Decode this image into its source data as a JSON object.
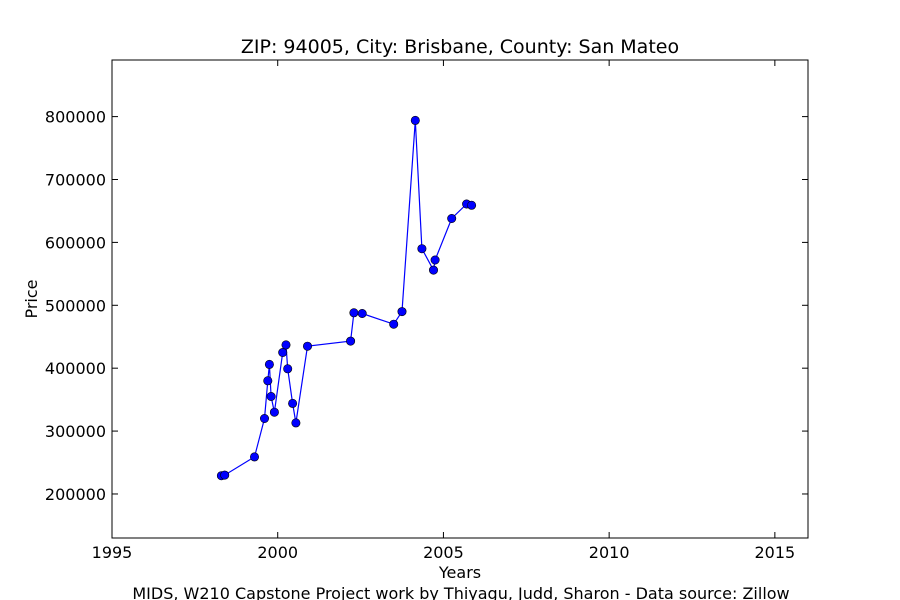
{
  "chart_data": {
    "type": "line",
    "title": "ZIP: 94005, City: Brisbane, County: San Mateo",
    "xlabel": "Years",
    "ylabel": "Price",
    "footer": "MIDS, W210 Capstone Project work by Thiyagu, Judd, Sharon  -  Data source: Zillow",
    "xlim": [
      1995,
      2016
    ],
    "ylim": [
      130000,
      890000
    ],
    "xticks": [
      1995,
      2000,
      2005,
      2010,
      2015
    ],
    "yticks": [
      200000,
      300000,
      400000,
      500000,
      600000,
      700000,
      800000
    ],
    "grid": false,
    "marker": "circle",
    "color": "#0000ff",
    "series": [
      {
        "x": [
          1998.3,
          1998.4,
          1999.3,
          1999.6,
          1999.7,
          1999.75,
          1999.8,
          1999.9,
          2000.15,
          2000.25,
          2000.3,
          2000.45,
          2000.55,
          2000.9,
          2002.2,
          2002.3,
          2002.55,
          2003.5,
          2003.75,
          2004.15,
          2004.35,
          2004.7,
          2004.75,
          2005.25,
          2005.7,
          2005.85
        ],
        "values": [
          229000,
          230000,
          259000,
          320000,
          380000,
          406000,
          355000,
          330000,
          425000,
          437000,
          399000,
          344000,
          313000,
          435000,
          443000,
          488000,
          487000,
          470000,
          490000,
          794000,
          590000,
          556000,
          572000,
          638000,
          661000,
          659000
        ]
      }
    ]
  }
}
